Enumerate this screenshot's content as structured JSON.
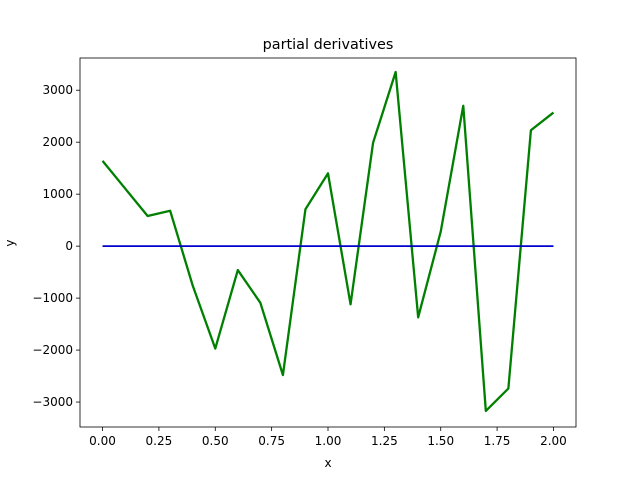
{
  "chart_data": {
    "type": "line",
    "title": "partial derivatives",
    "xlabel": "x",
    "ylabel": "y",
    "xlim": [
      -0.1,
      2.1
    ],
    "ylim": [
      -3480,
      3620
    ],
    "xticks": [
      0.0,
      0.25,
      0.5,
      0.75,
      1.0,
      1.25,
      1.5,
      1.75,
      2.0
    ],
    "xtick_labels": [
      "0.00",
      "0.25",
      "0.50",
      "0.75",
      "1.00",
      "1.25",
      "1.50",
      "1.75",
      "2.00"
    ],
    "yticks": [
      -3000,
      -2000,
      -1000,
      0,
      1000,
      2000,
      3000
    ],
    "ytick_labels": [
      "−3000",
      "−2000",
      "−1000",
      "0",
      "1000",
      "2000",
      "3000"
    ],
    "grid": false,
    "series": [
      {
        "color": "#008000",
        "x": [
          0.0,
          0.1,
          0.2,
          0.3,
          0.4,
          0.5,
          0.6,
          0.7,
          0.8,
          0.9,
          1.0,
          1.1,
          1.2,
          1.3,
          1.4,
          1.5,
          1.6,
          1.7,
          1.8,
          1.9,
          2.0
        ],
        "y": [
          1640,
          1110,
          580,
          680,
          -760,
          -1970,
          -460,
          -1090,
          -2480,
          710,
          1400,
          -1120,
          1990,
          3350,
          -1370,
          280,
          2700,
          -3170,
          -2740,
          2230,
          2570
        ]
      },
      {
        "color": "#0000cc",
        "x": [
          0.0,
          2.0
        ],
        "y": [
          0,
          0
        ]
      }
    ]
  }
}
